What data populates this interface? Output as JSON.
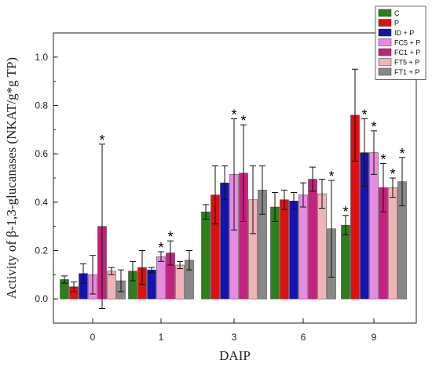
{
  "chart_data": {
    "type": "bar",
    "xlabel": "DAIP",
    "ylabel": "Activity of β-1,3-glucanases (NKAT/g*g TP)",
    "categories": [
      "0",
      "1",
      "3",
      "6",
      "9"
    ],
    "ylim": [
      -0.1,
      1.1
    ],
    "yticks": [
      0.0,
      0.2,
      0.4,
      0.6,
      0.8,
      1.0
    ],
    "ytick_labels": [
      "0.0",
      "0.2",
      "0.4",
      "0.6",
      "0.8",
      "1.0"
    ],
    "legend_position": "top-right",
    "grid": false,
    "significance_marker": "*",
    "series": [
      {
        "name": "C",
        "color": "#2e7d1e",
        "values": [
          0.08,
          0.115,
          0.36,
          0.38,
          0.305
        ],
        "errors": [
          0.015,
          0.04,
          0.03,
          0.06,
          0.04
        ],
        "significant": [
          false,
          false,
          false,
          false,
          true
        ]
      },
      {
        "name": "P",
        "color": "#e01010",
        "values": [
          0.05,
          0.13,
          0.43,
          0.41,
          0.76
        ],
        "errors": [
          0.02,
          0.07,
          0.12,
          0.04,
          0.19
        ],
        "significant": [
          false,
          false,
          false,
          false,
          false
        ]
      },
      {
        "name": "ID + P",
        "color": "#1414b0",
        "values": [
          0.105,
          0.12,
          0.48,
          0.405,
          0.605
        ],
        "errors": [
          0.04,
          0.01,
          0.07,
          0.035,
          0.14
        ],
        "significant": [
          false,
          false,
          false,
          false,
          true
        ]
      },
      {
        "name": "FC5 + P",
        "color": "#e88ae0",
        "values": [
          0.1,
          0.175,
          0.515,
          0.43,
          0.605
        ],
        "errors": [
          0.08,
          0.02,
          0.23,
          0.05,
          0.09
        ],
        "significant": [
          false,
          true,
          true,
          false,
          true
        ]
      },
      {
        "name": "FC1 + P",
        "color": "#c8207e",
        "values": [
          0.3,
          0.19,
          0.52,
          0.495,
          0.46
        ],
        "errors": [
          0.34,
          0.05,
          0.2,
          0.05,
          0.1
        ],
        "significant": [
          true,
          true,
          true,
          false,
          true
        ]
      },
      {
        "name": "FT5 + P",
        "color": "#f0b4b8",
        "values": [
          0.115,
          0.14,
          0.41,
          0.435,
          0.46
        ],
        "errors": [
          0.015,
          0.015,
          0.14,
          0.06,
          0.04
        ],
        "significant": [
          false,
          false,
          false,
          false,
          true
        ]
      },
      {
        "name": "FT1 + P",
        "color": "#888888",
        "values": [
          0.075,
          0.16,
          0.45,
          0.29,
          0.485
        ],
        "errors": [
          0.045,
          0.04,
          0.1,
          0.2,
          0.1
        ],
        "significant": [
          false,
          false,
          false,
          true,
          true
        ]
      }
    ]
  }
}
